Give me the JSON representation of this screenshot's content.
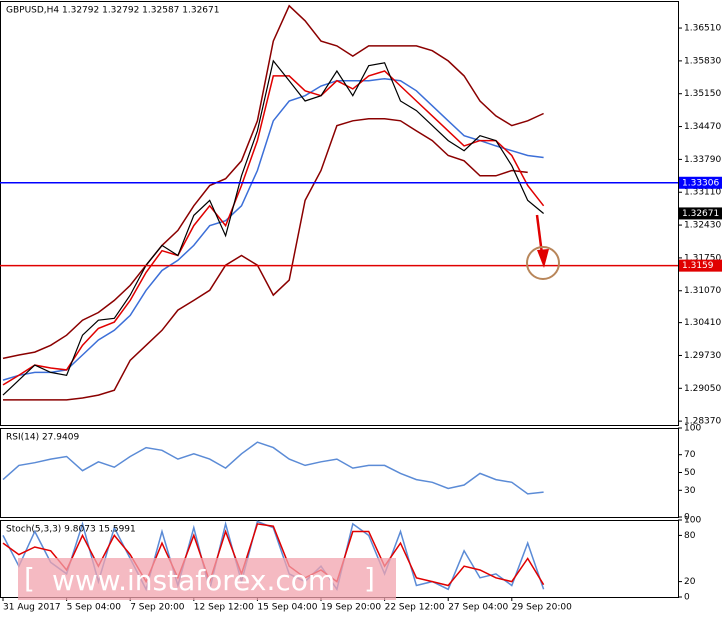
{
  "chart_data": [
    {
      "type": "line",
      "title": "GBPUSD,H4  1.32792 1.32792 1.32587 1.32671",
      "ylim": [
        1.2829,
        1.3707
      ],
      "yticks": [
        {
          "value": 1.2837,
          "label": "1.28370"
        },
        {
          "value": 1.2905,
          "label": "1.29050"
        },
        {
          "value": 1.2973,
          "label": "1.29730"
        },
        {
          "value": 1.3041,
          "label": "1.30410"
        },
        {
          "value": 1.3107,
          "label": "1.31070"
        },
        {
          "value": 1.3175,
          "label": "1.31750"
        },
        {
          "value": 1.3243,
          "label": "1.32430"
        },
        {
          "value": 1.3311,
          "label": "1.33110"
        },
        {
          "value": 1.3379,
          "label": "1.33790"
        },
        {
          "value": 1.3447,
          "label": "1.34470"
        },
        {
          "value": 1.3515,
          "label": "1.35150"
        },
        {
          "value": 1.3583,
          "label": "1.35830"
        },
        {
          "value": 1.3651,
          "label": "1.36510"
        }
      ],
      "levels": [
        {
          "value": 1.33306,
          "color": "#0000ff"
        },
        {
          "value": 1.3159,
          "color": "#e00000"
        }
      ],
      "last": 1.32671,
      "series": [
        {
          "color": "#8b0000",
          "values": [
            1.2967,
            1.2974,
            1.298,
            1.2994,
            1.3015,
            1.3046,
            1.3062,
            1.3087,
            1.3118,
            1.316,
            1.3201,
            1.3232,
            1.3283,
            1.3325,
            1.3339,
            1.3376,
            1.3459,
            1.3624,
            1.3697,
            1.3666,
            1.3624,
            1.3614,
            1.3593,
            1.3614,
            1.3614,
            1.3614,
            1.3614,
            1.3604,
            1.3583,
            1.3552,
            1.35,
            1.3469,
            1.3449,
            1.3459,
            1.3474
          ]
        },
        {
          "color": "#8b0000",
          "values": [
            1.2881,
            1.2881,
            1.2881,
            1.2881,
            1.2881,
            1.2885,
            1.2891,
            1.2901,
            1.2963,
            1.2994,
            1.3025,
            1.3067,
            1.3087,
            1.3108,
            1.316,
            1.318,
            1.316,
            1.3098,
            1.3129,
            1.3294,
            1.3356,
            1.3449,
            1.3459,
            1.3463,
            1.3463,
            1.3459,
            1.3438,
            1.3418,
            1.3387,
            1.3376,
            1.3345,
            1.3345,
            1.3356,
            1.3352,
            null
          ]
        },
        {
          "color": "#3c6fd8",
          "values": [
            1.2922,
            1.2932,
            1.2938,
            1.2938,
            1.2943,
            1.2974,
            1.3005,
            1.3025,
            1.3056,
            1.3108,
            1.3149,
            1.317,
            1.3201,
            1.3242,
            1.3252,
            1.3283,
            1.3356,
            1.3459,
            1.35,
            1.3511,
            1.3531,
            1.3542,
            1.3542,
            1.3542,
            1.3546,
            1.3542,
            1.3521,
            1.349,
            1.3459,
            1.3428,
            1.3418,
            1.3407,
            1.3397,
            1.3387,
            1.3383
          ]
        },
        {
          "color": "#e00000",
          "values": [
            1.2912,
            1.2932,
            1.2953,
            1.2947,
            1.2943,
            1.2994,
            1.3029,
            1.3042,
            1.3087,
            1.3145,
            1.319,
            1.318,
            1.3242,
            1.3283,
            1.3242,
            1.3325,
            1.3418,
            1.3552,
            1.3552,
            1.3521,
            1.3511,
            1.3542,
            1.3525,
            1.3552,
            1.3562,
            1.3531,
            1.35,
            1.3469,
            1.3438,
            1.3407,
            1.3418,
            1.3418,
            1.3387,
            1.3325,
            1.3283
          ]
        },
        {
          "color": "#000000",
          "values": [
            1.2891,
            1.2922,
            1.2953,
            1.2938,
            1.2932,
            1.3015,
            1.3046,
            1.305,
            1.3098,
            1.316,
            1.3201,
            1.318,
            1.3263,
            1.3294,
            1.3221,
            1.3345,
            1.3438,
            1.3583,
            1.3542,
            1.35,
            1.3511,
            1.3562,
            1.3511,
            1.3573,
            1.3579,
            1.35,
            1.348,
            1.3449,
            1.3418,
            1.3397,
            1.3428,
            1.3418,
            1.3366,
            1.3294,
            1.3267
          ]
        }
      ]
    },
    {
      "type": "line",
      "title": "RSI(14) 27.9409",
      "ylim": [
        0,
        100
      ],
      "yticks": [
        0,
        30,
        50,
        70,
        100
      ],
      "series": [
        {
          "color": "#5b8bd6",
          "values": [
            42,
            58,
            61,
            65,
            68,
            52,
            62,
            56,
            68,
            78,
            75,
            65,
            71,
            65,
            55,
            71,
            84,
            78,
            65,
            58,
            62,
            65,
            55,
            58,
            58,
            49,
            42,
            39,
            32,
            36,
            49,
            42,
            39,
            26,
            28
          ]
        }
      ]
    },
    {
      "type": "line",
      "title": "Stoch(5,3,3) 9.8073 15.5991",
      "ylim": [
        0,
        100
      ],
      "yticks": [
        0,
        20,
        80,
        100
      ],
      "categories": [
        "31 Aug 2017",
        null,
        null,
        null,
        "5 Sep 04:00",
        null,
        null,
        null,
        "7 Sep 20:00",
        null,
        null,
        null,
        "12 Sep 12:00",
        null,
        null,
        null,
        "15 Sep 04:00",
        null,
        null,
        null,
        "19 Sep 20:00",
        null,
        null,
        null,
        "22 Sep 12:00",
        null,
        null,
        null,
        "27 Sep 04:00",
        null,
        null,
        null,
        "29 Sep 20:00",
        null,
        null
      ],
      "series": [
        {
          "color": "#5b8bd6",
          "values": [
            80,
            40,
            85,
            45,
            30,
            95,
            20,
            90,
            50,
            10,
            85,
            15,
            90,
            10,
            95,
            20,
            98,
            90,
            30,
            20,
            40,
            10,
            95,
            80,
            30,
            85,
            15,
            20,
            10,
            60,
            25,
            30,
            15,
            70,
            10
          ]
        },
        {
          "color": "#e00000",
          "values": [
            70,
            55,
            65,
            60,
            35,
            80,
            40,
            80,
            55,
            20,
            70,
            25,
            80,
            20,
            85,
            30,
            95,
            92,
            40,
            25,
            35,
            20,
            85,
            85,
            40,
            70,
            25,
            20,
            15,
            40,
            35,
            25,
            20,
            50,
            16
          ]
        }
      ]
    }
  ],
  "watermark": "www.instaforex.com"
}
